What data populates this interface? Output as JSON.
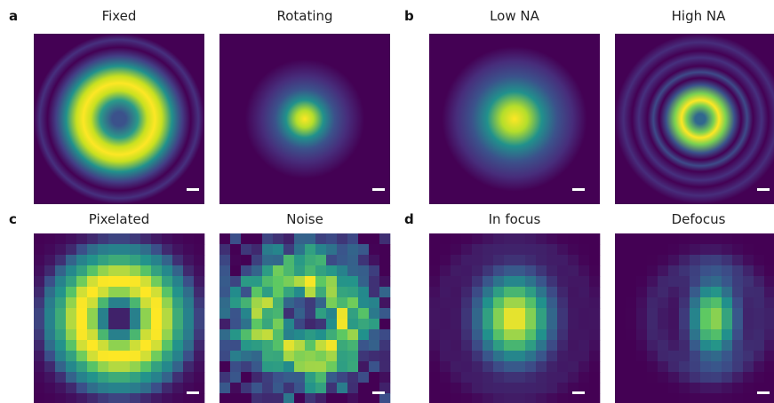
{
  "panels": [
    {
      "label": "a",
      "images": [
        {
          "title": "Fixed"
        },
        {
          "title": "Rotating"
        }
      ]
    },
    {
      "label": "b",
      "images": [
        {
          "title": "Low NA"
        },
        {
          "title": "High NA"
        }
      ]
    },
    {
      "label": "c",
      "images": [
        {
          "title": "Pixelated"
        },
        {
          "title": "Noise"
        }
      ]
    },
    {
      "label": "d",
      "images": [
        {
          "title": "In focus"
        },
        {
          "title": "Defocus"
        }
      ]
    }
  ]
}
